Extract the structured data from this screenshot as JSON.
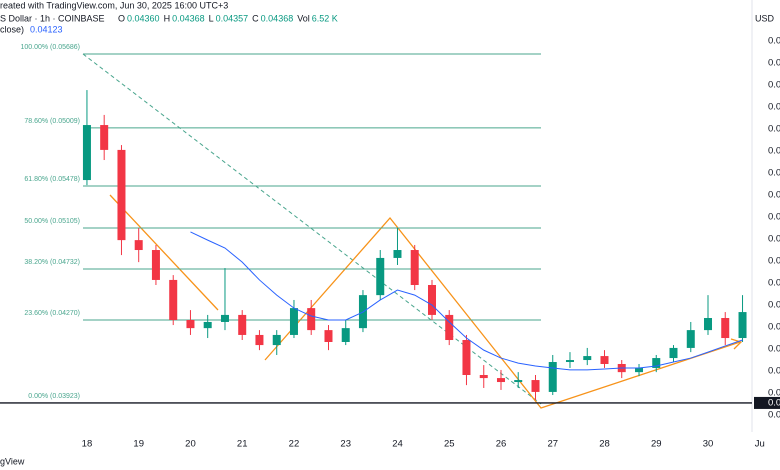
{
  "chart_data": {
    "type": "candlestick",
    "header": "reated with TradingView.com, Jun 30, 2025 16:00 UTC+3",
    "symbol": "S Dollar · 1h · COINBASE",
    "ohlc_legend": [
      {
        "key": "O",
        "value": "0.04360"
      },
      {
        "key": "H",
        "value": "0.04368"
      },
      {
        "key": "L",
        "value": "0.04357"
      },
      {
        "key": "C",
        "value": "0.04368"
      },
      {
        "key": "Vol",
        "value": "6.52 K"
      }
    ],
    "indicator_legend": {
      "key": "close)",
      "value": "0.04123"
    },
    "currency": "USD",
    "watermark": "gView",
    "up_color": "#089981",
    "down_color": "#f23645",
    "x": [
      18.0,
      18.333,
      18.667,
      19.0,
      19.333,
      19.667,
      20.0,
      20.333,
      20.667,
      21.0,
      21.333,
      21.667,
      22.0,
      22.333,
      22.667,
      23.0,
      23.333,
      23.667,
      24.0,
      24.333,
      24.667,
      25.0,
      25.333,
      25.667,
      26.0,
      26.333,
      26.667,
      27.0,
      27.333,
      27.667,
      28.0,
      28.333,
      28.667,
      29.0,
      29.333,
      29.667,
      30.0,
      30.333,
      30.667
    ],
    "open": [
      0.04868,
      0.05118,
      0.05005,
      0.04595,
      0.0455,
      0.04414,
      0.04232,
      0.04195,
      0.04223,
      0.04255,
      0.04164,
      0.04118,
      0.04164,
      0.04286,
      0.04186,
      0.04132,
      0.04195,
      0.04345,
      0.04514,
      0.0455,
      0.04391,
      0.04255,
      0.04141,
      0.03982,
      0.03968,
      0.0395,
      0.03959,
      0.03905,
      0.04041,
      0.0405,
      0.04068,
      0.04032,
      0.03995,
      0.04014,
      0.04059,
      0.04105,
      0.04186,
      0.04241,
      0.0415
    ],
    "high": [
      0.05277,
      0.05164,
      0.05027,
      0.0465,
      0.04573,
      0.04436,
      0.04277,
      0.04255,
      0.04468,
      0.04277,
      0.04186,
      0.04186,
      0.04323,
      0.04323,
      0.04209,
      0.04232,
      0.04368,
      0.0455,
      0.0465,
      0.04573,
      0.04414,
      0.04277,
      0.04164,
      0.04027,
      0.04005,
      0.03995,
      0.03982,
      0.04073,
      0.04086,
      0.04105,
      0.04095,
      0.0405,
      0.04032,
      0.04073,
      0.04118,
      0.04223,
      0.04345,
      0.04268,
      0.04345
    ],
    "low": [
      0.04845,
      0.04959,
      0.04527,
      0.04495,
      0.04391,
      0.04209,
      0.04164,
      0.0415,
      0.04186,
      0.04141,
      0.04095,
      0.04073,
      0.0415,
      0.04164,
      0.04095,
      0.04118,
      0.04177,
      0.04323,
      0.04482,
      0.04368,
      0.04232,
      0.04118,
      0.03936,
      0.03923,
      0.03914,
      0.03923,
      0.03868,
      0.03891,
      0.04014,
      0.04027,
      0.04014,
      0.03968,
      0.03977,
      0.03995,
      0.04041,
      0.04086,
      0.04164,
      0.04118,
      0.04132
    ],
    "close": [
      0.05118,
      0.05005,
      0.04595,
      0.0455,
      0.04414,
      0.04232,
      0.04195,
      0.04223,
      0.04255,
      0.04164,
      0.04118,
      0.04164,
      0.04286,
      0.04186,
      0.04132,
      0.04195,
      0.04345,
      0.04514,
      0.0455,
      0.04391,
      0.04255,
      0.04141,
      0.03982,
      0.03968,
      0.0395,
      0.03959,
      0.03905,
      0.04041,
      0.0405,
      0.04068,
      0.04032,
      0.03995,
      0.04014,
      0.04059,
      0.04105,
      0.04186,
      0.04241,
      0.0415,
      0.04268
    ],
    "moving_average": {
      "color": "#2962ff",
      "values": [
        null,
        null,
        null,
        null,
        null,
        null,
        0.04632,
        0.04595,
        0.04559,
        0.04495,
        0.04414,
        0.04345,
        0.04286,
        0.0425,
        0.04232,
        0.04232,
        0.04268,
        0.04323,
        0.04368,
        0.04345,
        0.043,
        0.04223,
        0.0415,
        0.04095,
        0.04059,
        0.04036,
        0.04023,
        0.04014,
        0.04005,
        0.04005,
        0.04009,
        0.04014,
        0.04014,
        0.04023,
        0.04041,
        0.04059,
        0.04086,
        0.04114,
        0.04141
      ]
    },
    "fib_color": "#4aa68e",
    "fib_levels": [
      {
        "value": 0.05441,
        "label": "100.00% (0.05686)"
      },
      {
        "value": 0.05105,
        "label": "78.60% (0.05009)"
      },
      {
        "value": 0.04841,
        "label": "61.80% (0.05478)"
      },
      {
        "value": 0.0465,
        "label": "50.00% (0.05105)"
      },
      {
        "value": 0.04464,
        "label": "38.20% (0.04732)"
      },
      {
        "value": 0.04232,
        "label": "23.60% (0.04270)"
      },
      {
        "value": 0.03855,
        "label": "0.00% (0.03923)"
      }
    ],
    "axis_tag": {
      "value": 0.03855,
      "label": "0.0"
    },
    "xlim": [
      16.32,
      30.85
    ],
    "xticks": [
      18,
      19,
      20,
      21,
      22,
      23,
      24,
      25,
      26,
      27,
      28,
      29,
      30,
      {
        "value": 31,
        "label": "Ju"
      }
    ],
    "ylim": [
      0.03732,
      0.0555
    ],
    "yticks": [
      {
        "value": 0.055,
        "label": "0.0"
      },
      {
        "value": 0.054,
        "label": "0.0"
      },
      {
        "value": 0.053,
        "label": "0.0"
      },
      {
        "value": 0.052,
        "label": "0.0"
      },
      {
        "value": 0.051,
        "label": "0.0"
      },
      {
        "value": 0.05,
        "label": "0.0"
      },
      {
        "value": 0.049,
        "label": "0.0"
      },
      {
        "value": 0.048,
        "label": "0.0"
      },
      {
        "value": 0.047,
        "label": "0.0"
      },
      {
        "value": 0.046,
        "label": "0.0"
      },
      {
        "value": 0.045,
        "label": "0.0"
      },
      {
        "value": 0.044,
        "label": "0.0"
      },
      {
        "value": 0.043,
        "label": "0.0"
      },
      {
        "value": 0.042,
        "label": "0.0"
      },
      {
        "value": 0.041,
        "label": "0.0"
      },
      {
        "value": 0.04,
        "label": "0.0"
      },
      {
        "value": 0.039,
        "label": "0.0"
      },
      {
        "value": 0.038,
        "label": "0.0"
      }
    ],
    "grid": false
  }
}
